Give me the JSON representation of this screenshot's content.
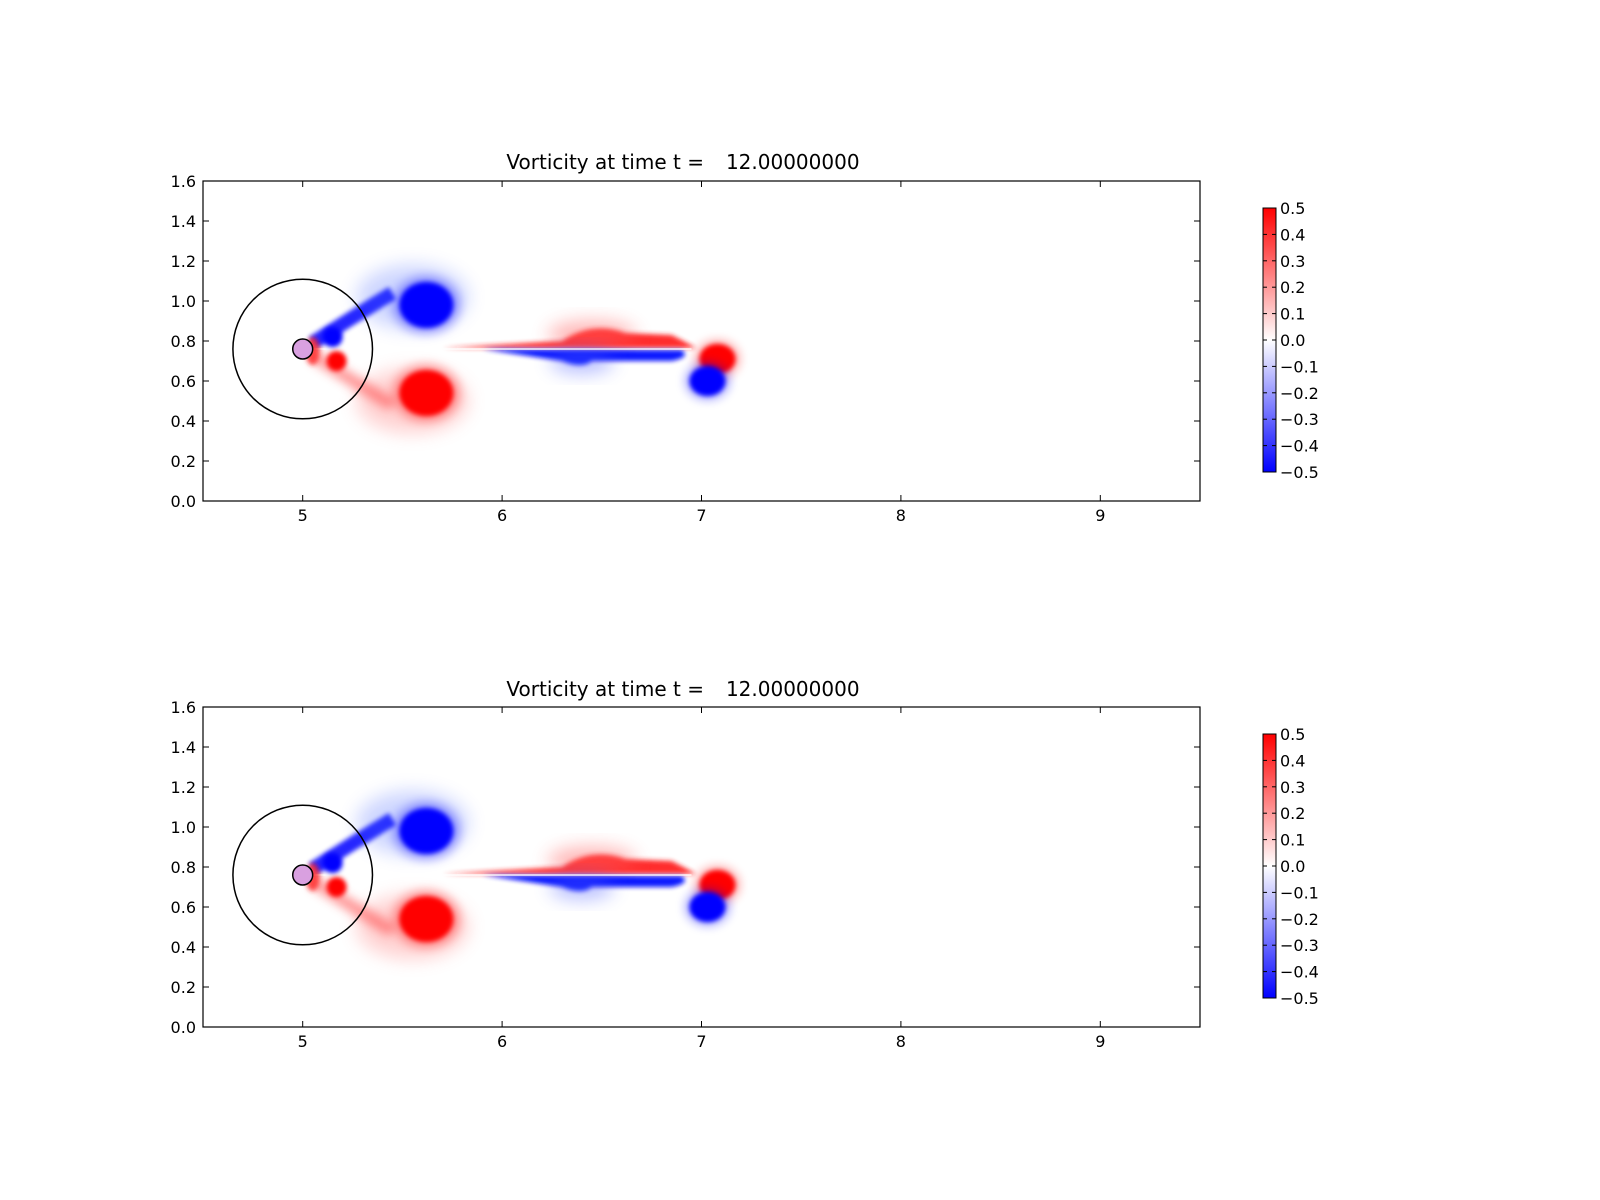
{
  "chart_data": [
    {
      "type": "heatmap",
      "title": "Vorticity at time t =",
      "time_value": "12.00000000",
      "xlabel": "",
      "ylabel": "",
      "xlim": [
        4.5,
        9.5
      ],
      "ylim": [
        0.0,
        1.6
      ],
      "x_ticks": [
        "5",
        "6",
        "7",
        "8",
        "9"
      ],
      "y_ticks": [
        "0.0",
        "0.2",
        "0.4",
        "0.6",
        "0.8",
        "1.0",
        "1.2",
        "1.4",
        "1.6"
      ],
      "grid": false,
      "colorbar": {
        "colormap": "bwr",
        "min": -0.5,
        "max": 0.5,
        "ticks": [
          "0.5",
          "0.4",
          "0.3",
          "0.2",
          "0.1",
          "0.0",
          "−0.1",
          "−0.2",
          "−0.3",
          "−0.4",
          "−0.5"
        ]
      },
      "overlays": [
        {
          "shape": "circle",
          "center": [
            5.0,
            0.76
          ],
          "radius": 0.35
        },
        {
          "shape": "circle",
          "center": [
            5.0,
            0.76
          ],
          "radius": 0.05
        }
      ],
      "vortices": [
        {
          "x": 5.62,
          "y": 0.98,
          "sign": -1,
          "strength": 0.5
        },
        {
          "x": 5.62,
          "y": 0.54,
          "sign": 1,
          "strength": 0.5
        },
        {
          "x": 7.08,
          "y": 0.71,
          "sign": 1,
          "strength": 0.5
        },
        {
          "x": 7.03,
          "y": 0.6,
          "sign": -1,
          "strength": 0.5
        }
      ]
    },
    {
      "type": "heatmap",
      "title": "Vorticity at time t =",
      "time_value": "12.00000000",
      "xlabel": "",
      "ylabel": "",
      "xlim": [
        4.5,
        9.5
      ],
      "ylim": [
        0.0,
        1.6
      ],
      "x_ticks": [
        "5",
        "6",
        "7",
        "8",
        "9"
      ],
      "y_ticks": [
        "0.0",
        "0.2",
        "0.4",
        "0.6",
        "0.8",
        "1.0",
        "1.2",
        "1.4",
        "1.6"
      ],
      "grid": false,
      "colorbar": {
        "colormap": "bwr",
        "min": -0.5,
        "max": 0.5,
        "ticks": [
          "0.5",
          "0.4",
          "0.3",
          "0.2",
          "0.1",
          "0.0",
          "−0.1",
          "−0.2",
          "−0.3",
          "−0.4",
          "−0.5"
        ]
      },
      "overlays": [
        {
          "shape": "circle",
          "center": [
            5.0,
            0.76
          ],
          "radius": 0.35
        },
        {
          "shape": "circle",
          "center": [
            5.0,
            0.76
          ],
          "radius": 0.05
        }
      ],
      "vortices": [
        {
          "x": 5.62,
          "y": 0.98,
          "sign": -1,
          "strength": 0.5
        },
        {
          "x": 5.62,
          "y": 0.54,
          "sign": 1,
          "strength": 0.5
        },
        {
          "x": 7.08,
          "y": 0.71,
          "sign": 1,
          "strength": 0.5
        },
        {
          "x": 7.03,
          "y": 0.6,
          "sign": -1,
          "strength": 0.5
        }
      ]
    }
  ]
}
